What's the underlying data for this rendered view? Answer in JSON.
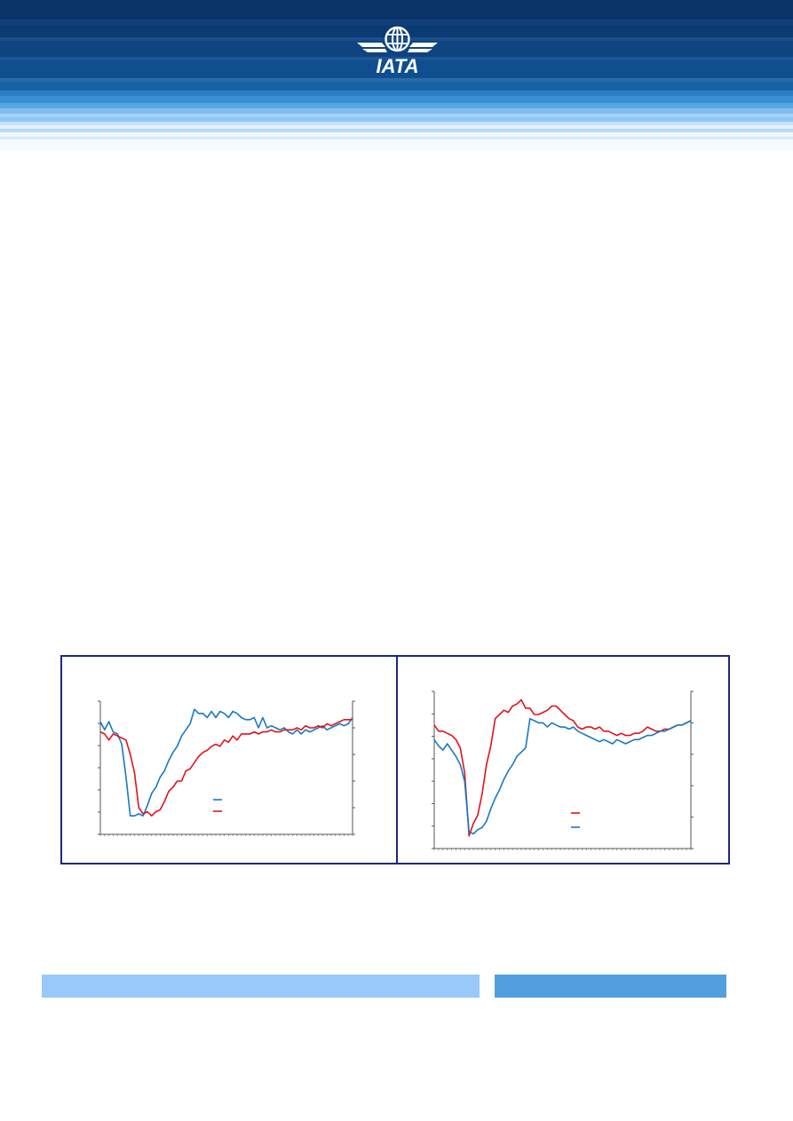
{
  "header": {
    "logo_text": "IATA",
    "logo_icon": "globe-wings-icon",
    "colors": {
      "dark": "#0a3468",
      "mid": "#0f4f8f",
      "light": "#7fbdf0",
      "accent": "#1a2a7a"
    }
  },
  "chart_data": [
    {
      "type": "line",
      "title": "",
      "dual_axis": true,
      "series": [
        {
          "color": "#1a78c2",
          "values": [
            90,
            86,
            90,
            85,
            84,
            79,
            63,
            44,
            44,
            45,
            44,
            49,
            55,
            58,
            63,
            66,
            71,
            75,
            78,
            83,
            86,
            89,
            96,
            94,
            94,
            92,
            95,
            92,
            95,
            94,
            92,
            95,
            94,
            92,
            91,
            91,
            92,
            87,
            92,
            87,
            88,
            87,
            86,
            87,
            85,
            84,
            86,
            84,
            86,
            85,
            86,
            87,
            88,
            86,
            87,
            88,
            89,
            88,
            89,
            92
          ]
        },
        {
          "color": "#e0121b",
          "values": [
            85,
            84,
            81,
            84,
            83,
            82,
            81,
            74,
            65,
            48,
            45,
            46,
            44,
            46,
            47,
            51,
            56,
            58,
            61,
            61,
            66,
            67,
            70,
            73,
            75,
            76,
            78,
            79,
            78,
            81,
            80,
            83,
            81,
            84,
            84,
            84,
            85,
            84,
            85,
            85,
            86,
            85,
            85,
            86,
            86,
            86,
            87,
            86,
            88,
            87,
            87,
            88,
            87,
            89,
            88,
            89,
            90,
            91,
            91,
            91
          ]
        }
      ]
    },
    {
      "type": "line",
      "title": "",
      "dual_axis": true,
      "series": [
        {
          "color": "#e0121b",
          "values": [
            89,
            86,
            86,
            85,
            84,
            82,
            78,
            66,
            36,
            42,
            46,
            56,
            70,
            79,
            92,
            94,
            96,
            95,
            98,
            99,
            101,
            97,
            97,
            94,
            94,
            95,
            96,
            98,
            98,
            96,
            94,
            92,
            91,
            88,
            87,
            88,
            88,
            87,
            88,
            86,
            86,
            85,
            84,
            85,
            84,
            84,
            85,
            85,
            86,
            88,
            87,
            86,
            86,
            87,
            87,
            88,
            89,
            89,
            90,
            91
          ]
        },
        {
          "color": "#1a78c2",
          "values": [
            82,
            79,
            77,
            80,
            77,
            74,
            70,
            62,
            38,
            37,
            39,
            40,
            43,
            49,
            54,
            58,
            63,
            67,
            70,
            74,
            76,
            78,
            92,
            91,
            90,
            90,
            88,
            90,
            89,
            88,
            88,
            87,
            88,
            86,
            85,
            84,
            83,
            82,
            81,
            82,
            81,
            80,
            82,
            81,
            80,
            81,
            82,
            82,
            83,
            84,
            84,
            85,
            86,
            86,
            87,
            88,
            89,
            89,
            90,
            91
          ]
        }
      ]
    }
  ],
  "footer": {
    "bar_left_color": "#99c9fb",
    "bar_right_color": "#519fdf"
  }
}
